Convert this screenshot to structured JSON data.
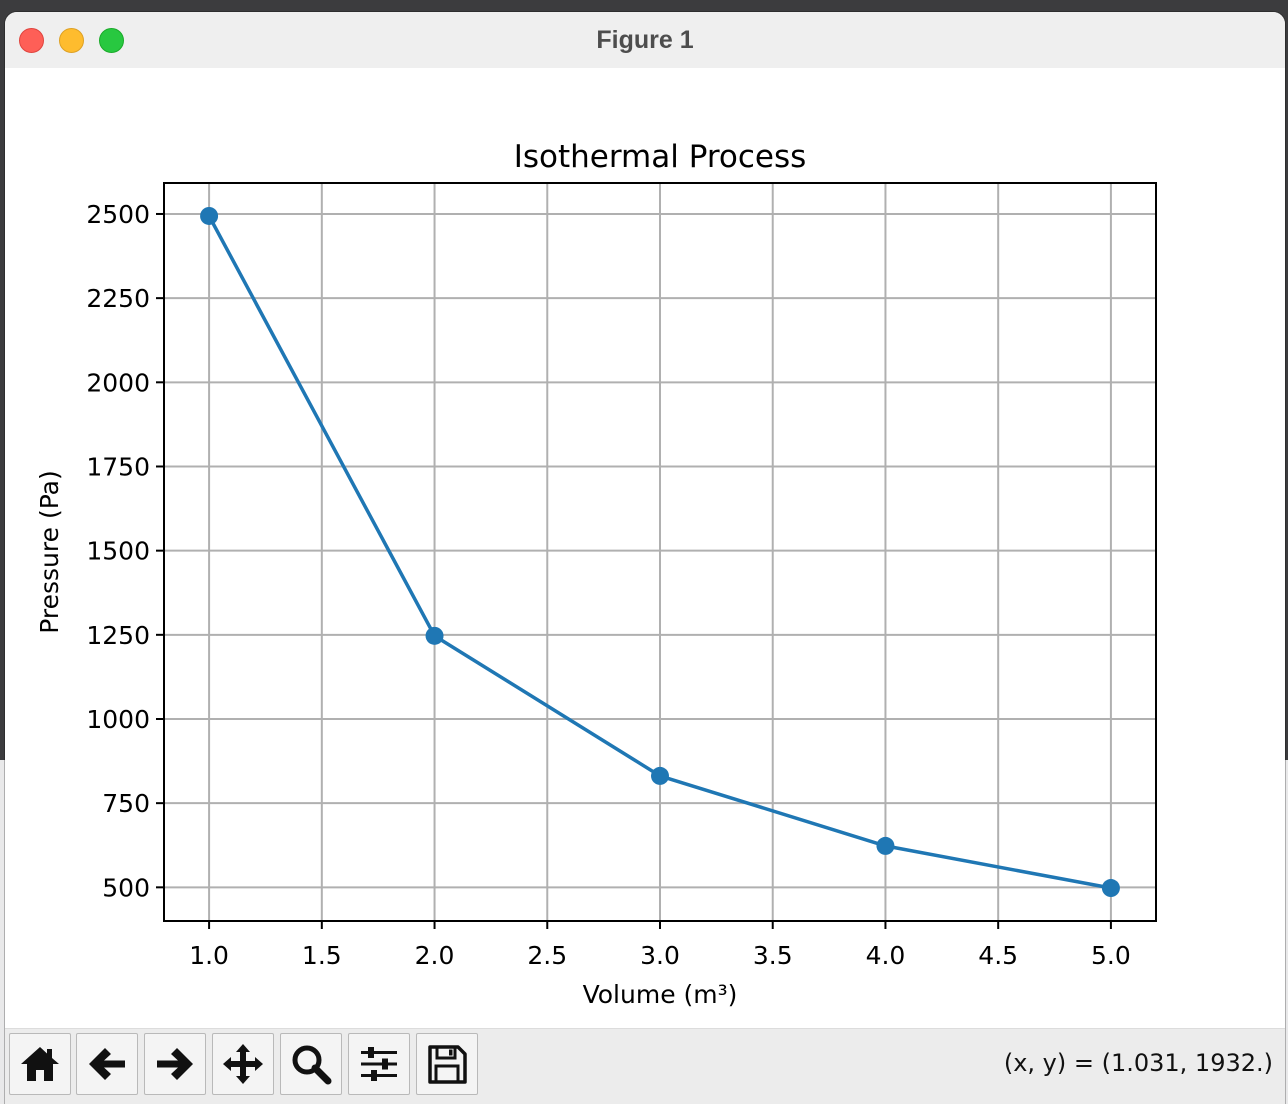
{
  "window": {
    "title": "Figure 1"
  },
  "toolbar": {
    "buttons": [
      {
        "name": "home-button",
        "icon": "home-icon"
      },
      {
        "name": "back-button",
        "icon": "arrow-left-icon"
      },
      {
        "name": "forward-button",
        "icon": "arrow-right-icon"
      },
      {
        "name": "pan-button",
        "icon": "move-icon"
      },
      {
        "name": "zoom-button",
        "icon": "magnifier-icon"
      },
      {
        "name": "configure-subplots-button",
        "icon": "sliders-icon"
      },
      {
        "name": "save-button",
        "icon": "floppy-disk-icon"
      }
    ],
    "coords": "(x, y) = (1.031, 1932.)"
  },
  "chart_data": {
    "type": "line",
    "title": "Isothermal Process",
    "xlabel": "Volume (m³)",
    "ylabel": "Pressure (Pa)",
    "x": [
      1.0,
      2.0,
      3.0,
      4.0,
      5.0
    ],
    "series": [
      {
        "values": [
          2494,
          1247,
          831,
          623,
          498
        ],
        "color": "#1f77b4",
        "marker": "circle"
      }
    ],
    "xlim": [
      0.8,
      5.2
    ],
    "ylim": [
      400,
      2592
    ],
    "xticks": [
      "1.0",
      "1.5",
      "2.0",
      "2.5",
      "3.0",
      "3.5",
      "4.0",
      "4.5",
      "5.0"
    ],
    "xtick_values": [
      1.0,
      1.5,
      2.0,
      2.5,
      3.0,
      3.5,
      4.0,
      4.5,
      5.0
    ],
    "yticks": [
      "500",
      "750",
      "1000",
      "1250",
      "1500",
      "1750",
      "2000",
      "2250",
      "2500"
    ],
    "ytick_values": [
      500,
      750,
      1000,
      1250,
      1500,
      1750,
      2000,
      2250,
      2500
    ],
    "grid": true
  }
}
